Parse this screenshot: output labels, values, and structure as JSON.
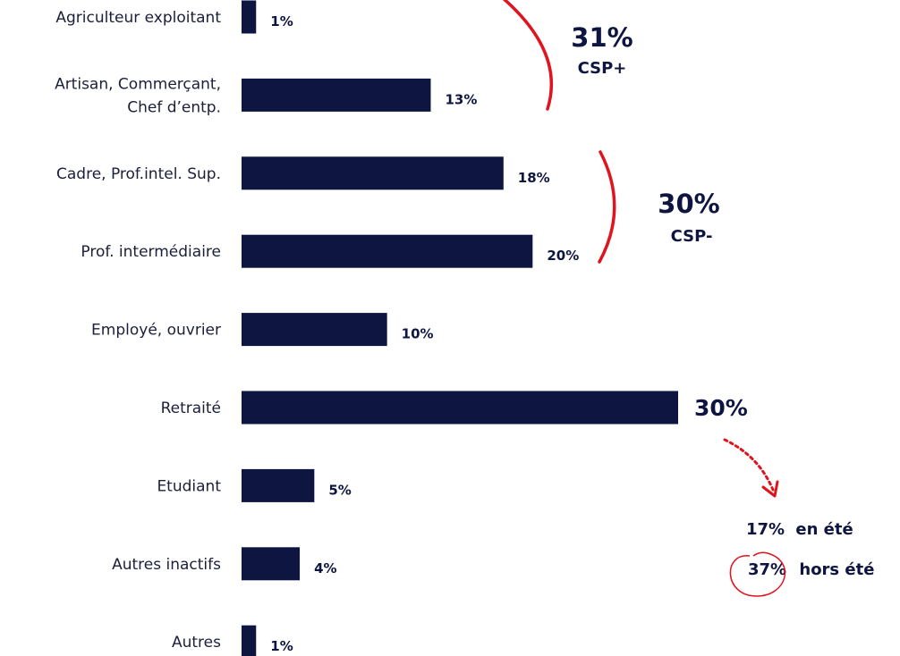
{
  "chart_data": {
    "type": "bar",
    "orientation": "horizontal",
    "title": "",
    "xlabel": "",
    "ylabel": "",
    "categories": [
      [
        "Agriculteur exploitant"
      ],
      [
        "Artisan, Commerçant,",
        "Chef d’entp."
      ],
      [
        "Cadre, Prof.intel. Sup."
      ],
      [
        "Prof. intermédiaire"
      ],
      [
        "Employé, ouvrier"
      ],
      [
        "Retraité"
      ],
      [
        "Etudiant"
      ],
      [
        "Autres inactifs"
      ],
      [
        "Autres"
      ]
    ],
    "values": [
      1,
      13,
      18,
      20,
      10,
      30,
      5,
      4,
      1
    ],
    "value_labels": [
      "1%",
      "13%",
      "18%",
      "20%",
      "10%",
      "30%",
      "5%",
      "4%",
      "1%"
    ],
    "xlim": [
      0,
      31
    ],
    "grid": false,
    "legend": "none",
    "bar_color": "#0d1540",
    "accent_color": "#e0141e"
  },
  "annotations": {
    "group1": {
      "value": "31%",
      "label": "CSP+"
    },
    "group2": {
      "value": "30%",
      "label": "CSP-"
    },
    "retraite_split": {
      "summer": {
        "value": "17%",
        "text": "en été"
      },
      "off_season": {
        "value": "37%",
        "text": "hors été"
      }
    }
  }
}
